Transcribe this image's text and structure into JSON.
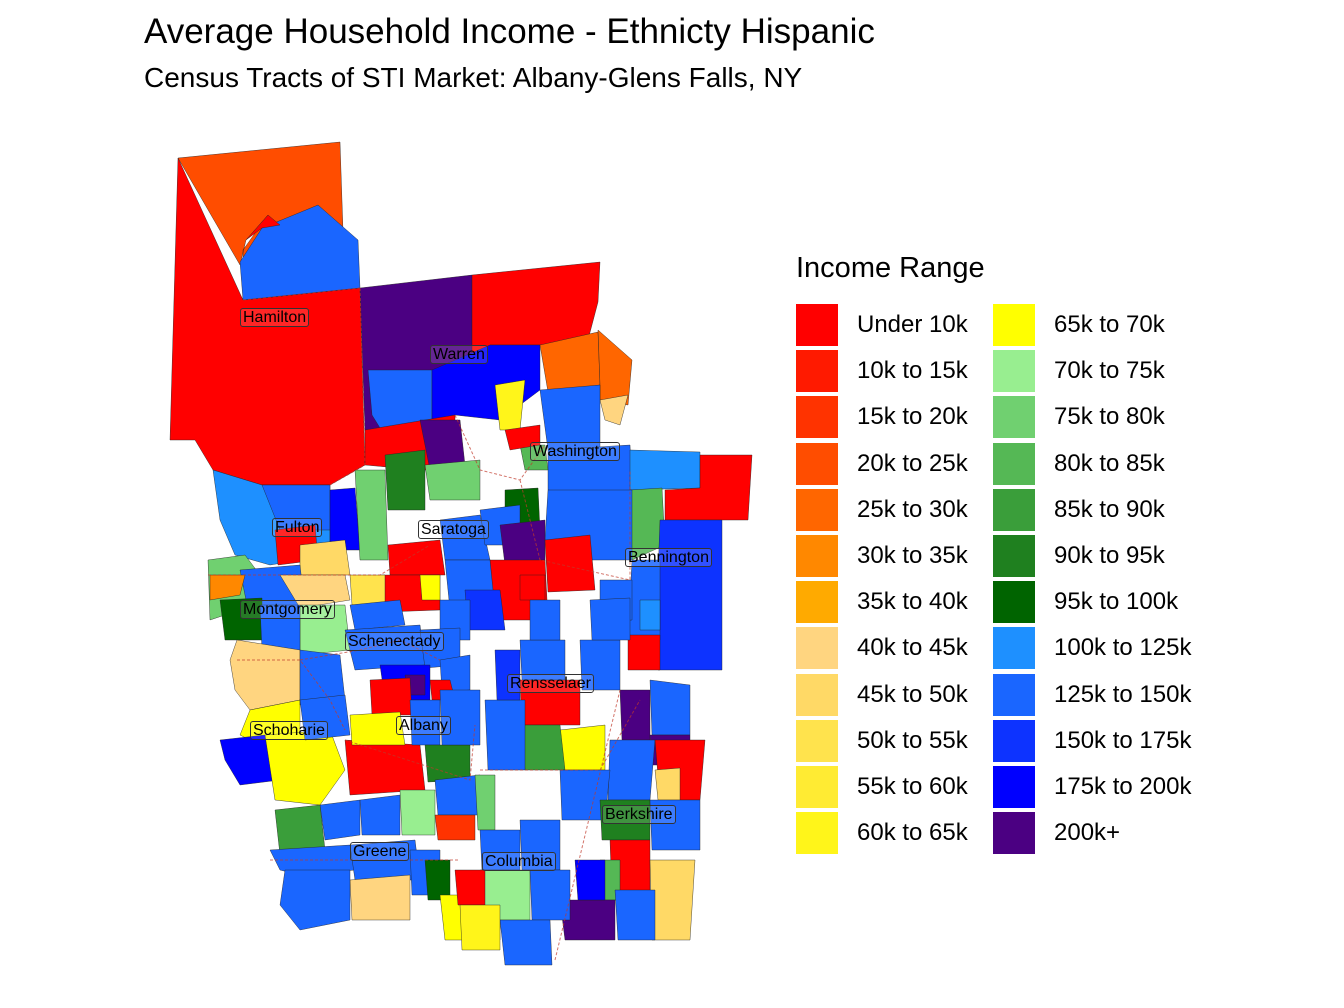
{
  "title": "Average Household Income - Ethnicty Hispanic",
  "subtitle": "Census Tracts of STI Market: Albany-Glens Falls, NY",
  "legend": {
    "title": "Income Range",
    "items": [
      {
        "label": "Under 10k",
        "color": "#FF0000"
      },
      {
        "label": "10k to 15k",
        "color": "#FF1A00"
      },
      {
        "label": "15k to 20k",
        "color": "#FF3300"
      },
      {
        "label": "20k to 25k",
        "color": "#FF4D00"
      },
      {
        "label": "25k to 30k",
        "color": "#FF6600"
      },
      {
        "label": "30k to 35k",
        "color": "#FF8800"
      },
      {
        "label": "35k to 40k",
        "color": "#FFAA00"
      },
      {
        "label": "40k to 45k",
        "color": "#FFD580"
      },
      {
        "label": "45k to 50k",
        "color": "#FFD966"
      },
      {
        "label": "50k to 55k",
        "color": "#FFE34D"
      },
      {
        "label": "55k to 60k",
        "color": "#FFEB33"
      },
      {
        "label": "60k to 65k",
        "color": "#FFF51A"
      },
      {
        "label": "65k to 70k",
        "color": "#FFFF00"
      },
      {
        "label": "70k to 75k",
        "color": "#98EE90"
      },
      {
        "label": "75k to 80k",
        "color": "#70D070"
      },
      {
        "label": "80k to 85k",
        "color": "#55B855"
      },
      {
        "label": "85k to 90k",
        "color": "#3A9E3A"
      },
      {
        "label": "90k to 95k",
        "color": "#1F801F"
      },
      {
        "label": "95k to 100k",
        "color": "#006400"
      },
      {
        "label": "100k to 125k",
        "color": "#1E90FF"
      },
      {
        "label": "125k to 150k",
        "color": "#1A66FF"
      },
      {
        "label": "150k to 175k",
        "color": "#0D33FF"
      },
      {
        "label": "175k to 200k",
        "color": "#0000FF"
      },
      {
        "label": "200k+",
        "color": "#4B0082"
      }
    ]
  },
  "counties": [
    "Hamilton",
    "Warren",
    "Washington",
    "Fulton",
    "Saratoga",
    "Bennington",
    "Montgomery",
    "Schenectady",
    "Rensselaer",
    "Albany",
    "Schoharie",
    "Berkshire",
    "Greene",
    "Columbia"
  ]
}
